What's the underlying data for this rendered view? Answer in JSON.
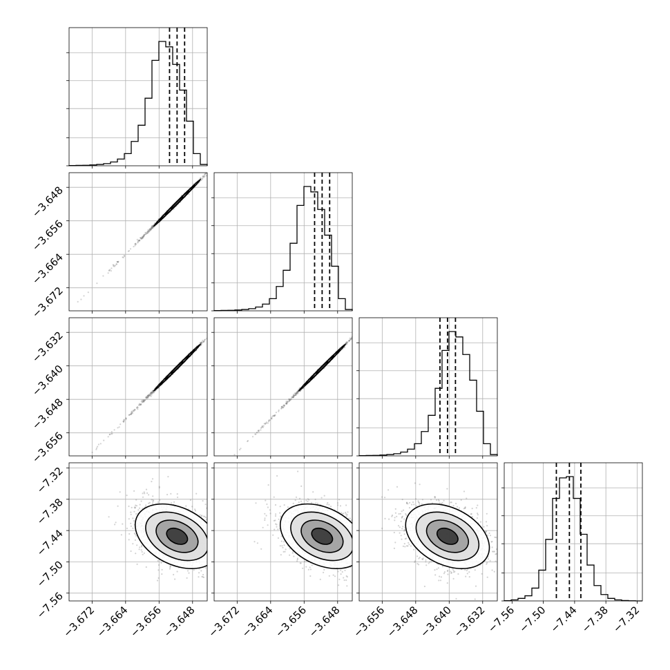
{
  "chart_data": {
    "type": "corner",
    "grid": true,
    "colors": {
      "ink": "#000000",
      "grid": "#b0b0b0",
      "points": "#7f7f7f"
    },
    "parameters": [
      {
        "index": 0,
        "range": [
          -3.6775,
          -3.6445
        ],
        "ticks": [
          -3.672,
          -3.664,
          -3.656,
          -3.648
        ],
        "tick_labels": [
          "−3.672",
          "−3.664",
          "−3.656",
          "−3.648"
        ]
      },
      {
        "index": 1,
        "range": [
          -3.6775,
          -3.6445
        ],
        "ticks": [
          -3.672,
          -3.664,
          -3.656,
          -3.648
        ],
        "tick_labels": [
          "−3.672",
          "−3.664",
          "−3.656",
          "−3.648"
        ]
      },
      {
        "index": 2,
        "range": [
          -3.6615,
          -3.6285
        ],
        "ticks": [
          -3.656,
          -3.648,
          -3.64,
          -3.632
        ],
        "tick_labels": [
          "−3.656",
          "−3.648",
          "−3.640",
          "−3.632"
        ]
      },
      {
        "index": 3,
        "range": [
          -7.575,
          -7.31
        ],
        "ticks": [
          -7.56,
          -7.5,
          -7.44,
          -7.38,
          -7.32
        ],
        "tick_labels": [
          "−7.56",
          "−7.50",
          "−7.44",
          "−7.38",
          "−7.32"
        ]
      }
    ],
    "histograms": [
      {
        "param": 0,
        "quantiles": [
          -3.6535,
          -3.6517,
          -3.6499
        ],
        "counts": [
          0.2,
          0.3,
          0.4,
          0.6,
          1.0,
          1.6,
          2.8,
          5.0,
          9.0,
          18,
          30,
          50,
          78,
          92,
          88,
          75,
          56,
          33,
          9,
          1.0
        ]
      },
      {
        "param": 1,
        "quantiles": [
          -3.6535,
          -3.6517,
          -3.6499
        ],
        "counts": [
          0.2,
          0.3,
          0.4,
          0.6,
          1.0,
          1.6,
          2.8,
          5.0,
          9.0,
          18,
          30,
          50,
          78,
          92,
          88,
          75,
          56,
          33,
          9,
          1.0
        ]
      },
      {
        "param": 2,
        "quantiles": [
          -3.6422,
          -3.6404,
          -3.6385
        ],
        "counts": [
          0.2,
          0.3,
          0.4,
          0.6,
          1.0,
          1.6,
          2.8,
          5.0,
          9.0,
          18,
          30,
          50,
          78,
          92,
          88,
          75,
          56,
          33,
          9,
          1.0
        ]
      },
      {
        "param": 3,
        "quantiles": [
          -7.475,
          -7.45,
          -7.428
        ],
        "counts": [
          0.2,
          0.8,
          2.0,
          4.0,
          10,
          24,
          48,
          80,
          96,
          97,
          80,
          52,
          28,
          12,
          5,
          2,
          0.8,
          0.3,
          0.1,
          0.0
        ]
      }
    ],
    "scatter_2d": [
      {
        "x_param": 0,
        "y_param": 1,
        "center": [
          -3.6517,
          -3.6517
        ],
        "std": [
          0.0028,
          0.0028
        ],
        "rho": 0.998
      },
      {
        "x_param": 0,
        "y_param": 2,
        "center": [
          -3.6517,
          -3.6404
        ],
        "std": [
          0.0028,
          0.0028
        ],
        "rho": 0.998
      },
      {
        "x_param": 1,
        "y_param": 2,
        "center": [
          -3.6517,
          -3.6404
        ],
        "std": [
          0.0028,
          0.0028
        ],
        "rho": 0.998
      },
      {
        "x_param": 0,
        "y_param": 3,
        "center": [
          -3.6517,
          -7.451
        ],
        "std": [
          0.005,
          0.031
        ],
        "rho": -0.35
      },
      {
        "x_param": 1,
        "y_param": 3,
        "center": [
          -3.6517,
          -7.451
        ],
        "std": [
          0.005,
          0.031
        ],
        "rho": -0.35
      },
      {
        "x_param": 2,
        "y_param": 3,
        "center": [
          -3.6404,
          -7.451
        ],
        "std": [
          0.005,
          0.031
        ],
        "rho": -0.35
      }
    ]
  }
}
